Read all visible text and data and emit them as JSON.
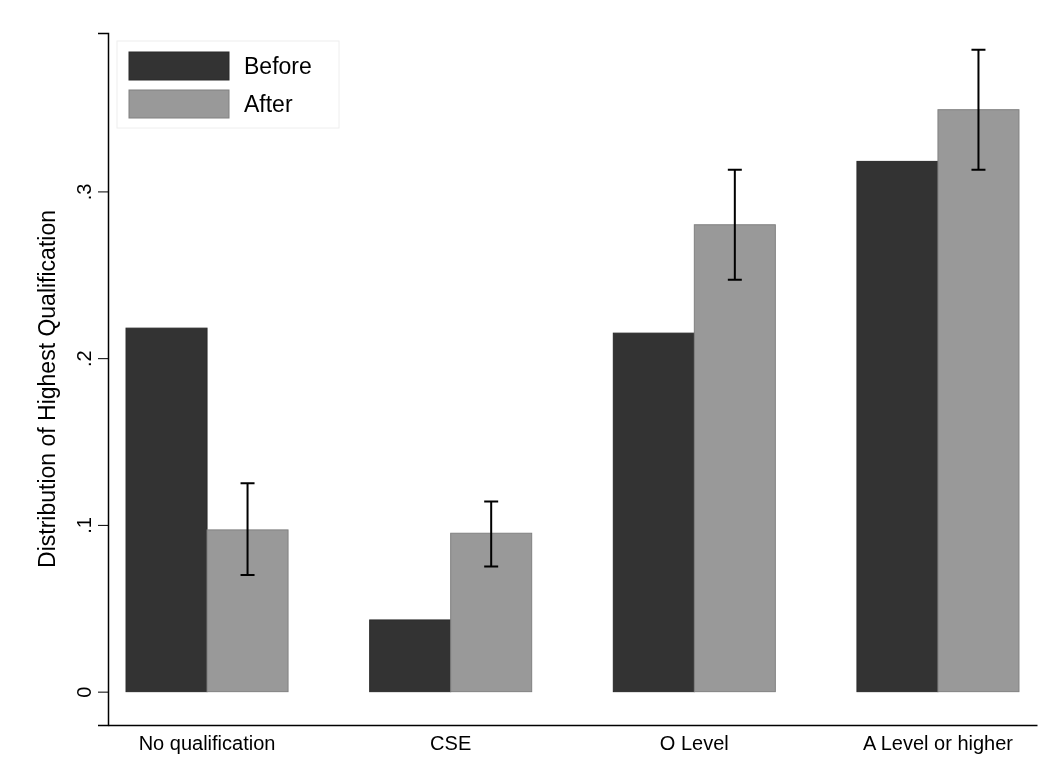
{
  "chart_data": {
    "type": "bar",
    "ylabel": "Distribution of Highest Qualification",
    "categories": [
      "No qualification",
      "CSE",
      "O Level",
      "A Level or higher"
    ],
    "series": [
      {
        "name": "Before",
        "color": "#333333",
        "values": [
          0.218,
          0.043,
          0.215,
          0.318
        ]
      },
      {
        "name": "After",
        "color": "#999999",
        "values": [
          0.097,
          0.095,
          0.28,
          0.349
        ],
        "errors": [
          [
            0.07,
            0.125
          ],
          [
            0.075,
            0.114
          ],
          [
            0.247,
            0.313
          ],
          [
            0.313,
            0.385
          ]
        ]
      }
    ],
    "ylim": [
      -0.02,
      0.395
    ],
    "yticks": [
      {
        "value": 0,
        "label": "0"
      },
      {
        "value": 0.1,
        "label": ".1"
      },
      {
        "value": 0.2,
        "label": ".2"
      },
      {
        "value": 0.3,
        "label": ".3"
      }
    ],
    "grid": false,
    "legend": "top left"
  }
}
